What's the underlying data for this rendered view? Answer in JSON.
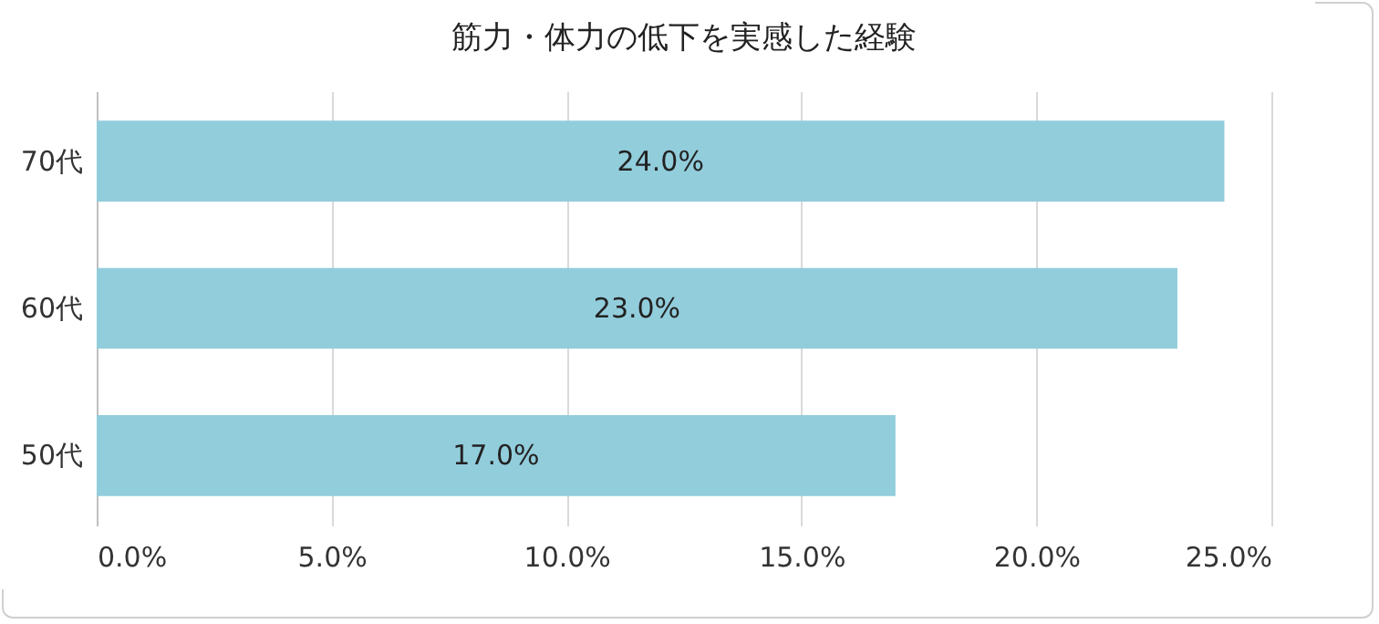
{
  "chart_data": {
    "type": "bar",
    "orientation": "horizontal",
    "title": "筋力・体力の低下を実感した経験",
    "categories": [
      "70代",
      "60代",
      "50代"
    ],
    "values": [
      24.0,
      23.0,
      17.0
    ],
    "value_labels": [
      "24.0%",
      "23.0%",
      "17.0%"
    ],
    "color": "#92cddc",
    "xlim": [
      0,
      25
    ],
    "xticks": [
      {
        "value": 0,
        "label": "0.0%"
      },
      {
        "value": 5,
        "label": "5.0%"
      },
      {
        "value": 10,
        "label": "10.0%"
      },
      {
        "value": 15,
        "label": "15.0%"
      },
      {
        "value": 20,
        "label": "20.0%"
      },
      {
        "value": 25,
        "label": "25.0%"
      }
    ],
    "grid": "x"
  }
}
